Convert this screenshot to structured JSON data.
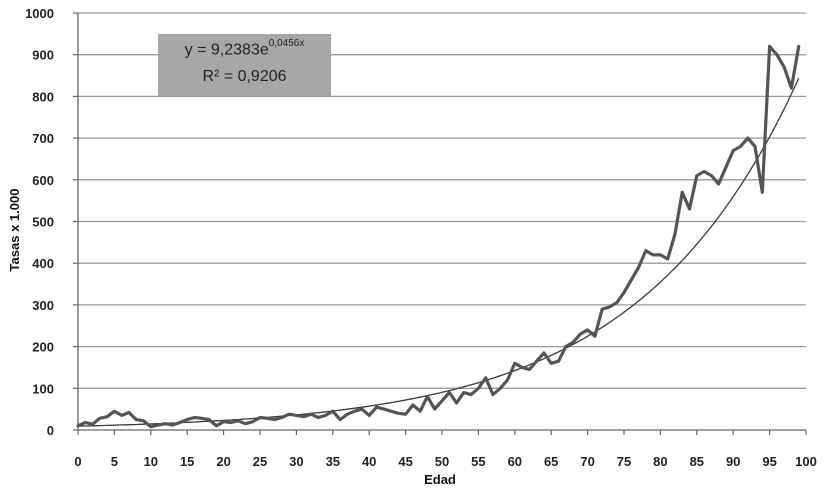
{
  "chart_data": {
    "type": "line",
    "xlabel": "Edad",
    "ylabel": "Tasas x 1.000",
    "xlim": [
      0,
      100
    ],
    "ylim": [
      0,
      1000
    ],
    "xticks": [
      0,
      5,
      10,
      15,
      20,
      25,
      30,
      35,
      40,
      45,
      50,
      55,
      60,
      65,
      70,
      75,
      80,
      85,
      90,
      95,
      100
    ],
    "yticks": [
      0,
      100,
      200,
      300,
      400,
      500,
      600,
      700,
      800,
      900,
      1000
    ],
    "grid": "horizontal",
    "series": [
      {
        "role": "observed",
        "x": [
          0,
          1,
          2,
          3,
          4,
          5,
          6,
          7,
          8,
          9,
          10,
          11,
          12,
          13,
          14,
          15,
          16,
          17,
          18,
          19,
          20,
          21,
          22,
          23,
          24,
          25,
          26,
          27,
          28,
          29,
          30,
          31,
          32,
          33,
          34,
          35,
          36,
          37,
          38,
          39,
          40,
          41,
          42,
          43,
          44,
          45,
          46,
          47,
          48,
          49,
          50,
          51,
          52,
          53,
          54,
          55,
          56,
          57,
          58,
          59,
          60,
          61,
          62,
          63,
          64,
          65,
          66,
          67,
          68,
          69,
          70,
          71,
          72,
          73,
          74,
          75,
          76,
          77,
          78,
          79,
          80,
          81,
          82,
          83,
          84,
          85,
          86,
          87,
          88,
          89,
          90,
          91,
          92,
          93,
          94,
          95,
          96,
          97,
          98,
          99
        ],
        "y": [
          10,
          18,
          14,
          28,
          32,
          45,
          35,
          42,
          25,
          22,
          8,
          12,
          15,
          12,
          18,
          25,
          30,
          28,
          25,
          10,
          20,
          18,
          22,
          15,
          20,
          30,
          28,
          25,
          30,
          38,
          35,
          32,
          38,
          30,
          35,
          45,
          25,
          38,
          45,
          50,
          35,
          55,
          50,
          45,
          40,
          38,
          60,
          45,
          80,
          50,
          70,
          90,
          65,
          90,
          85,
          100,
          125,
          85,
          100,
          120,
          160,
          150,
          145,
          165,
          185,
          160,
          165,
          200,
          210,
          230,
          240,
          225,
          290,
          295,
          305,
          330,
          360,
          390,
          430,
          420,
          420,
          410,
          470,
          570,
          530,
          610,
          620,
          610,
          590,
          630,
          670,
          680,
          700,
          680,
          570,
          920,
          900,
          870,
          820,
          920
        ]
      },
      {
        "role": "trend",
        "function": "y = 9.2383 * exp(0.0456 * x)",
        "coefficient": 9.2383,
        "exponent": 0.0456
      }
    ],
    "annotation": {
      "equation_base": "y = 9,2383e",
      "equation_exponent": "0,0456x",
      "r_squared": "R² = 0,9206"
    }
  }
}
